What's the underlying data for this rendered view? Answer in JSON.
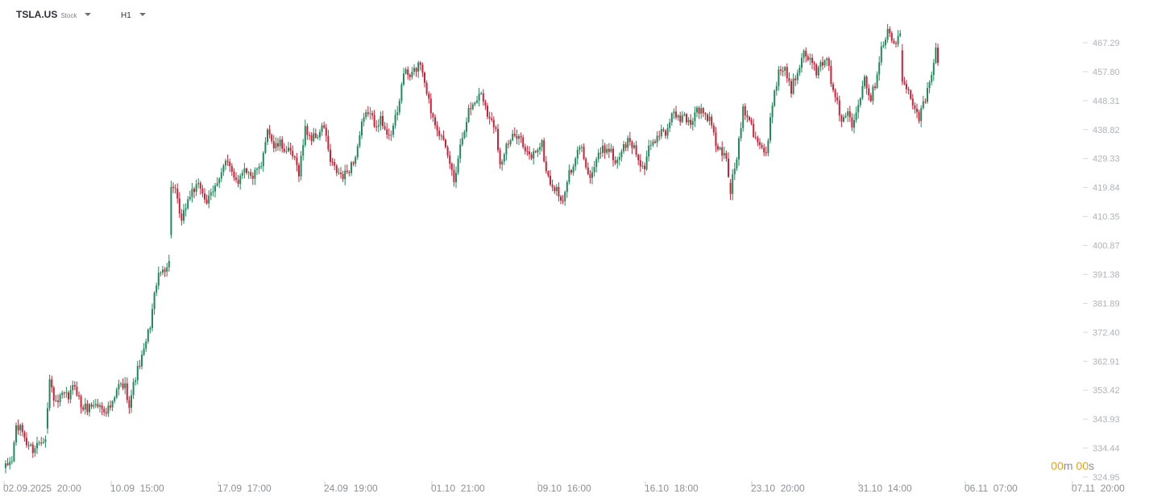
{
  "toolbar": {
    "symbol": "TSLA.US",
    "instrument_type": "Stock",
    "interval": "H1",
    "symbol_caret_icon": "chevron-down-icon",
    "interval_caret_icon": "chevron-down-icon"
  },
  "countdown": {
    "minutes": "00",
    "minutes_unit": "m",
    "seconds": "00",
    "seconds_unit": "s"
  },
  "colors": {
    "up": "#1f8a5b",
    "down": "#d21f35",
    "axis_text": "#aeb3ba",
    "x_axis_text": "#8b9098",
    "countdown": "#f0a020"
  },
  "chart_data": {
    "type": "candlestick",
    "symbol": "TSLA.US",
    "interval": "H1",
    "y_ticks": [
      324.95,
      334.44,
      343.93,
      353.42,
      362.91,
      372.4,
      381.89,
      391.38,
      400.87,
      410.35,
      419.84,
      429.33,
      438.82,
      448.31,
      457.8,
      467.29
    ],
    "ylim": [
      324.95,
      476.0
    ],
    "x_ticks": [
      "02.09.2025  20:00",
      "10.09  15:00",
      "17.09  17:00",
      "24.09  19:00",
      "01.10  21:00",
      "09.10  16:00",
      "16.10  18:00",
      "23.10  20:00",
      "31.10  14:00",
      "06.11  07:00",
      "07.11  20:00"
    ],
    "grid": false,
    "anchors": [
      [
        0,
        328.0
      ],
      [
        3,
        330.5
      ],
      [
        5,
        341.5
      ],
      [
        8,
        340.0
      ],
      [
        10,
        336.0
      ],
      [
        13,
        334.0
      ],
      [
        16,
        336.5
      ],
      [
        19,
        338.5
      ],
      [
        21,
        356.5
      ],
      [
        24,
        348.5
      ],
      [
        27,
        351.5
      ],
      [
        30,
        351.0
      ],
      [
        33,
        355.5
      ],
      [
        36,
        348.0
      ],
      [
        39,
        347.5
      ],
      [
        42,
        349.0
      ],
      [
        45,
        348.0
      ],
      [
        48,
        347.0
      ],
      [
        51,
        348.5
      ],
      [
        54,
        355.0
      ],
      [
        57,
        354.5
      ],
      [
        59,
        349.0
      ],
      [
        62,
        358.0
      ],
      [
        66,
        366.0
      ],
      [
        69,
        375.0
      ],
      [
        72,
        389.0
      ],
      [
        75,
        393.0
      ],
      [
        78,
        395.0
      ],
      [
        79,
        421.0
      ],
      [
        81,
        418.0
      ],
      [
        84,
        408.0
      ],
      [
        86,
        414.0
      ],
      [
        89,
        419.0
      ],
      [
        93,
        420.0
      ],
      [
        96,
        415.0
      ],
      [
        99,
        418.0
      ],
      [
        102,
        424.0
      ],
      [
        105,
        428.0
      ],
      [
        108,
        425.0
      ],
      [
        111,
        422.0
      ],
      [
        114,
        427.0
      ],
      [
        117,
        423.0
      ],
      [
        120,
        425.0
      ],
      [
        122,
        426.0
      ],
      [
        125,
        440.0
      ],
      [
        128,
        433.0
      ],
      [
        131,
        434.0
      ],
      [
        134,
        432.0
      ],
      [
        137,
        430.0
      ],
      [
        140,
        425.0
      ],
      [
        143,
        439.0
      ],
      [
        146,
        436.0
      ],
      [
        149,
        437.0
      ],
      [
        152,
        440.0
      ],
      [
        155,
        428.0
      ],
      [
        158,
        425.0
      ],
      [
        161,
        423.0
      ],
      [
        164,
        426.0
      ],
      [
        167,
        430.0
      ],
      [
        170,
        440.0
      ],
      [
        173,
        445.0
      ],
      [
        176,
        441.0
      ],
      [
        179,
        442.0
      ],
      [
        181,
        438.0
      ],
      [
        184,
        438.0
      ],
      [
        187,
        444.0
      ],
      [
        190,
        458.0
      ],
      [
        193,
        456.0
      ],
      [
        196,
        459.0
      ],
      [
        198,
        461.0
      ],
      [
        200,
        455.0
      ],
      [
        203,
        445.0
      ],
      [
        206,
        440.0
      ],
      [
        209,
        434.0
      ],
      [
        212,
        428.0
      ],
      [
        214,
        422.0
      ],
      [
        216,
        430.0
      ],
      [
        218,
        437.0
      ],
      [
        221,
        445.0
      ],
      [
        224,
        448.0
      ],
      [
        227,
        451.0
      ],
      [
        229,
        447.0
      ],
      [
        231,
        442.0
      ],
      [
        234,
        440.0
      ],
      [
        236,
        427.0
      ],
      [
        239,
        433.0
      ],
      [
        242,
        436.0
      ],
      [
        245,
        438.0
      ],
      [
        248,
        431.0
      ],
      [
        251,
        430.0
      ],
      [
        254,
        433.0
      ],
      [
        256,
        434.0
      ],
      [
        258,
        425.0
      ],
      [
        261,
        420.0
      ],
      [
        264,
        418.0
      ],
      [
        266,
        414.0
      ],
      [
        268,
        423.0
      ],
      [
        271,
        426.0
      ],
      [
        274,
        434.0
      ],
      [
        277,
        428.0
      ],
      [
        279,
        423.0
      ],
      [
        282,
        429.0
      ],
      [
        285,
        432.0
      ],
      [
        288,
        433.0
      ],
      [
        291,
        428.0
      ],
      [
        294,
        432.0
      ],
      [
        297,
        435.0
      ],
      [
        300,
        433.0
      ],
      [
        302,
        429.0
      ],
      [
        305,
        426.0
      ],
      [
        307,
        432.0
      ],
      [
        310,
        435.0
      ],
      [
        313,
        439.0
      ],
      [
        316,
        438.0
      ],
      [
        318,
        445.0
      ],
      [
        321,
        442.0
      ],
      [
        324,
        443.0
      ],
      [
        327,
        441.0
      ],
      [
        330,
        446.0
      ],
      [
        333,
        444.0
      ],
      [
        336,
        442.0
      ],
      [
        339,
        434.0
      ],
      [
        342,
        431.0
      ],
      [
        344,
        429.0
      ],
      [
        346,
        419.0
      ],
      [
        349,
        430.0
      ],
      [
        352,
        446.0
      ],
      [
        355,
        443.0
      ],
      [
        357,
        438.0
      ],
      [
        360,
        434.0
      ],
      [
        363,
        430.0
      ],
      [
        364,
        435.0
      ],
      [
        366,
        448.0
      ],
      [
        369,
        458.0
      ],
      [
        372,
        459.0
      ],
      [
        375,
        452.0
      ],
      [
        378,
        458.0
      ],
      [
        381,
        466.0
      ],
      [
        384,
        461.0
      ],
      [
        387,
        458.0
      ],
      [
        390,
        460.0
      ],
      [
        393,
        461.0
      ],
      [
        394,
        455.0
      ],
      [
        396,
        450.0
      ],
      [
        399,
        441.0
      ],
      [
        402,
        445.0
      ],
      [
        404,
        441.0
      ],
      [
        407,
        448.0
      ],
      [
        410,
        456.0
      ],
      [
        413,
        449.0
      ],
      [
        415,
        454.0
      ],
      [
        418,
        466.0
      ],
      [
        421,
        471.0
      ],
      [
        424,
        467.0
      ],
      [
        427,
        469.0
      ],
      [
        428,
        455.0
      ],
      [
        430,
        452.0
      ],
      [
        433,
        448.0
      ],
      [
        436,
        443.0
      ],
      [
        439,
        449.0
      ],
      [
        442,
        456.0
      ],
      [
        444,
        465.0
      ],
      [
        445,
        461.0
      ]
    ],
    "gaps": [
      20,
      79,
      183,
      346,
      428
    ],
    "last_candle_index": 445
  }
}
